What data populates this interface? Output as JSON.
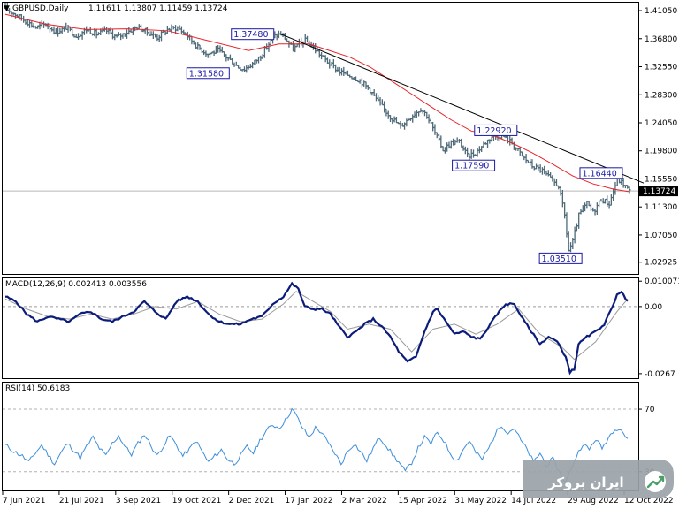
{
  "chart_data": [
    {
      "type": "ohlc",
      "pane": "price",
      "label": "GBPUSD,Daily",
      "ohlc": "1.11611 1.13807 1.11459 1.13724",
      "current_price": 1.13724,
      "current_price_label": "1.13724",
      "ylim": [
        1.0115,
        1.4226
      ],
      "yticks": [
        "1.41050",
        "1.36800",
        "1.32550",
        "1.28300",
        "1.24050",
        "1.19800",
        "1.15550",
        "1.11300",
        "1.07050",
        "1.02925"
      ],
      "ytick_values": [
        1.4105,
        1.368,
        1.3255,
        1.283,
        1.2405,
        1.198,
        1.1555,
        1.113,
        1.0705,
        1.02925
      ],
      "close_path": [
        [
          0,
          1.414
        ],
        [
          5,
          1.405
        ],
        [
          10,
          1.395
        ],
        [
          15,
          1.385
        ],
        [
          20,
          1.39
        ],
        [
          25,
          1.378
        ],
        [
          30,
          1.385
        ],
        [
          35,
          1.372
        ],
        [
          40,
          1.382
        ],
        [
          45,
          1.375
        ],
        [
          50,
          1.38
        ],
        [
          55,
          1.37
        ],
        [
          60,
          1.378
        ],
        [
          65,
          1.386
        ],
        [
          70,
          1.378
        ],
        [
          75,
          1.37
        ],
        [
          80,
          1.382
        ],
        [
          85,
          1.385
        ],
        [
          90,
          1.372
        ],
        [
          95,
          1.355
        ],
        [
          100,
          1.345
        ],
        [
          105,
          1.35
        ],
        [
          110,
          1.338
        ],
        [
          115,
          1.325
        ],
        [
          118,
          1.322
        ],
        [
          122,
          1.33
        ],
        [
          126,
          1.342
        ],
        [
          130,
          1.36
        ],
        [
          133,
          1.372
        ],
        [
          136,
          1.375
        ],
        [
          139,
          1.365
        ],
        [
          142,
          1.352
        ],
        [
          145,
          1.36
        ],
        [
          148,
          1.365
        ],
        [
          151,
          1.358
        ],
        [
          155,
          1.345
        ],
        [
          160,
          1.33
        ],
        [
          165,
          1.318
        ],
        [
          170,
          1.312
        ],
        [
          175,
          1.305
        ],
        [
          180,
          1.29
        ],
        [
          185,
          1.268
        ],
        [
          190,
          1.25
        ],
        [
          195,
          1.235
        ],
        [
          200,
          1.25
        ],
        [
          205,
          1.262
        ],
        [
          208,
          1.252
        ],
        [
          212,
          1.225
        ],
        [
          216,
          1.2
        ],
        [
          220,
          1.21
        ],
        [
          224,
          1.212
        ],
        [
          228,
          1.19
        ],
        [
          232,
          1.195
        ],
        [
          236,
          1.208
        ],
        [
          240,
          1.22
        ],
        [
          245,
          1.222
        ],
        [
          250,
          1.21
        ],
        [
          255,
          1.19
        ],
        [
          260,
          1.175
        ],
        [
          265,
          1.168
        ],
        [
          270,
          1.152
        ],
        [
          273,
          1.145
        ],
        [
          276,
          1.1
        ],
        [
          278,
          1.047
        ],
        [
          280,
          1.06
        ],
        [
          283,
          1.1
        ],
        [
          287,
          1.118
        ],
        [
          290,
          1.105
        ],
        [
          294,
          1.125
        ],
        [
          298,
          1.118
        ],
        [
          302,
          1.155
        ],
        [
          305,
          1.148
        ],
        [
          308,
          1.137
        ]
      ],
      "ma_path": [
        [
          0,
          1.405
        ],
        [
          20,
          1.39
        ],
        [
          40,
          1.382
        ],
        [
          60,
          1.383
        ],
        [
          80,
          1.38
        ],
        [
          100,
          1.365
        ],
        [
          120,
          1.35
        ],
        [
          135,
          1.36
        ],
        [
          150,
          1.36
        ],
        [
          160,
          1.35
        ],
        [
          170,
          1.34
        ],
        [
          180,
          1.325
        ],
        [
          190,
          1.305
        ],
        [
          200,
          1.285
        ],
        [
          210,
          1.265
        ],
        [
          220,
          1.245
        ],
        [
          230,
          1.228
        ],
        [
          240,
          1.222
        ],
        [
          250,
          1.21
        ],
        [
          260,
          1.195
        ],
        [
          270,
          1.178
        ],
        [
          280,
          1.16
        ],
        [
          290,
          1.148
        ],
        [
          300,
          1.14
        ],
        [
          308,
          1.136
        ]
      ],
      "trendline": [
        [
          136,
          1.3748
        ],
        [
          308,
          1.158
        ]
      ],
      "annotations": [
        {
          "text": "1.37480",
          "x": 112,
          "y": 1.3748
        },
        {
          "text": "1.31580",
          "x": 90,
          "y": 1.3158
        },
        {
          "text": "1.22920",
          "x": 232,
          "y": 1.2292
        },
        {
          "text": "1.17590",
          "x": 221,
          "y": 1.1759
        },
        {
          "text": "1.16440",
          "x": 284,
          "y": 1.1644
        },
        {
          "text": "1.03510",
          "x": 264,
          "y": 1.0351
        }
      ]
    },
    {
      "type": "line",
      "pane": "macd",
      "label": "MACD(12,26,9) 0.002413 0.003556",
      "ylim": [
        -0.0285,
        0.0112
      ],
      "yticks": [
        "0.010071",
        "0.00",
        "-0.0267"
      ],
      "ytick_values": [
        0.010071,
        0.0,
        -0.0267
      ],
      "zero_line": 0.0,
      "main": [
        [
          0,
          0.004
        ],
        [
          5,
          0.002
        ],
        [
          10,
          -0.003
        ],
        [
          15,
          -0.006
        ],
        [
          20,
          -0.004
        ],
        [
          25,
          -0.005
        ],
        [
          30,
          -0.006
        ],
        [
          35,
          -0.003
        ],
        [
          40,
          -0.002
        ],
        [
          45,
          -0.005
        ],
        [
          50,
          -0.006
        ],
        [
          55,
          -0.004
        ],
        [
          60,
          -0.002
        ],
        [
          65,
          0.002
        ],
        [
          70,
          -0.002
        ],
        [
          75,
          -0.005
        ],
        [
          80,
          0.002
        ],
        [
          85,
          0.004
        ],
        [
          90,
          0.002
        ],
        [
          95,
          -0.003
        ],
        [
          100,
          -0.006
        ],
        [
          105,
          -0.007
        ],
        [
          110,
          -0.007
        ],
        [
          115,
          -0.005
        ],
        [
          120,
          -0.004
        ],
        [
          125,
          0.001
        ],
        [
          130,
          0.004
        ],
        [
          134,
          0.009
        ],
        [
          137,
          0.007
        ],
        [
          140,
          0.0
        ],
        [
          144,
          -0.001
        ],
        [
          148,
          -0.001
        ],
        [
          152,
          -0.003
        ],
        [
          156,
          -0.008
        ],
        [
          160,
          -0.012
        ],
        [
          164,
          -0.01
        ],
        [
          168,
          -0.007
        ],
        [
          172,
          -0.005
        ],
        [
          176,
          -0.008
        ],
        [
          180,
          -0.012
        ],
        [
          184,
          -0.018
        ],
        [
          188,
          -0.022
        ],
        [
          192,
          -0.02
        ],
        [
          196,
          -0.01
        ],
        [
          200,
          -0.002
        ],
        [
          202,
          -0.001
        ],
        [
          206,
          -0.006
        ],
        [
          210,
          -0.011
        ],
        [
          214,
          -0.01
        ],
        [
          218,
          -0.012
        ],
        [
          222,
          -0.013
        ],
        [
          226,
          -0.008
        ],
        [
          230,
          -0.003
        ],
        [
          234,
          0.001
        ],
        [
          238,
          0.001
        ],
        [
          242,
          -0.005
        ],
        [
          246,
          -0.01
        ],
        [
          250,
          -0.015
        ],
        [
          254,
          -0.012
        ],
        [
          258,
          -0.014
        ],
        [
          262,
          -0.02
        ],
        [
          264,
          -0.026
        ],
        [
          266,
          -0.025
        ],
        [
          268,
          -0.015
        ],
        [
          272,
          -0.012
        ],
        [
          276,
          -0.01
        ],
        [
          280,
          -0.007
        ],
        [
          284,
          0.0
        ],
        [
          286,
          0.005
        ],
        [
          288,
          0.006
        ],
        [
          290,
          0.003
        ],
        [
          291,
          0.002
        ]
      ],
      "signal": [
        [
          0,
          0.003
        ],
        [
          10,
          -0.001
        ],
        [
          20,
          -0.004
        ],
        [
          30,
          -0.005
        ],
        [
          40,
          -0.003
        ],
        [
          50,
          -0.005
        ],
        [
          60,
          -0.003
        ],
        [
          70,
          0.0
        ],
        [
          80,
          -0.001
        ],
        [
          90,
          0.002
        ],
        [
          100,
          -0.003
        ],
        [
          110,
          -0.006
        ],
        [
          120,
          -0.005
        ],
        [
          130,
          0.001
        ],
        [
          136,
          0.006
        ],
        [
          144,
          0.002
        ],
        [
          152,
          -0.002
        ],
        [
          160,
          -0.009
        ],
        [
          170,
          -0.007
        ],
        [
          180,
          -0.009
        ],
        [
          190,
          -0.018
        ],
        [
          200,
          -0.009
        ],
        [
          210,
          -0.007
        ],
        [
          220,
          -0.011
        ],
        [
          230,
          -0.007
        ],
        [
          240,
          -0.001
        ],
        [
          250,
          -0.011
        ],
        [
          260,
          -0.016
        ],
        [
          266,
          -0.021
        ],
        [
          276,
          -0.014
        ],
        [
          286,
          -0.002
        ],
        [
          291,
          0.003
        ]
      ]
    },
    {
      "type": "line",
      "pane": "rsi",
      "label": "RSI(14) 50.6183",
      "ylim": [
        18,
        87
      ],
      "yticks": [
        "70",
        "30"
      ],
      "ytick_values": [
        70,
        30
      ],
      "levels": [
        70,
        30
      ],
      "values": [
        [
          0,
          47
        ],
        [
          4,
          43
        ],
        [
          8,
          40
        ],
        [
          11,
          36
        ],
        [
          14,
          42
        ],
        [
          17,
          47
        ],
        [
          20,
          41
        ],
        [
          23,
          35
        ],
        [
          26,
          42
        ],
        [
          29,
          48
        ],
        [
          32,
          44
        ],
        [
          35,
          39
        ],
        [
          38,
          46
        ],
        [
          41,
          52
        ],
        [
          44,
          45
        ],
        [
          47,
          40
        ],
        [
          50,
          48
        ],
        [
          53,
          53
        ],
        [
          56,
          46
        ],
        [
          59,
          41
        ],
        [
          62,
          48
        ],
        [
          65,
          54
        ],
        [
          68,
          47
        ],
        [
          71,
          40
        ],
        [
          74,
          47
        ],
        [
          77,
          53
        ],
        [
          80,
          47
        ],
        [
          83,
          40
        ],
        [
          86,
          44
        ],
        [
          89,
          50
        ],
        [
          92,
          43
        ],
        [
          95,
          36
        ],
        [
          98,
          40
        ],
        [
          101,
          44
        ],
        [
          104,
          38
        ],
        [
          107,
          35
        ],
        [
          110,
          40
        ],
        [
          113,
          46
        ],
        [
          116,
          42
        ],
        [
          119,
          50
        ],
        [
          122,
          56
        ],
        [
          125,
          60
        ],
        [
          128,
          58
        ],
        [
          131,
          63
        ],
        [
          134,
          70
        ],
        [
          136,
          66
        ],
        [
          139,
          58
        ],
        [
          142,
          52
        ],
        [
          145,
          58
        ],
        [
          148,
          55
        ],
        [
          151,
          48
        ],
        [
          154,
          42
        ],
        [
          157,
          35
        ],
        [
          160,
          43
        ],
        [
          163,
          48
        ],
        [
          166,
          43
        ],
        [
          169,
          37
        ],
        [
          172,
          45
        ],
        [
          175,
          52
        ],
        [
          178,
          47
        ],
        [
          181,
          41
        ],
        [
          184,
          36
        ],
        [
          187,
          30
        ],
        [
          190,
          36
        ],
        [
          193,
          45
        ],
        [
          196,
          52
        ],
        [
          199,
          48
        ],
        [
          202,
          55
        ],
        [
          205,
          50
        ],
        [
          208,
          42
        ],
        [
          211,
          37
        ],
        [
          214,
          44
        ],
        [
          217,
          50
        ],
        [
          220,
          42
        ],
        [
          223,
          38
        ],
        [
          226,
          45
        ],
        [
          229,
          54
        ],
        [
          232,
          60
        ],
        [
          235,
          55
        ],
        [
          238,
          58
        ],
        [
          241,
          50
        ],
        [
          244,
          44
        ],
        [
          247,
          36
        ],
        [
          250,
          42
        ],
        [
          253,
          34
        ],
        [
          256,
          38
        ],
        [
          259,
          30
        ],
        [
          262,
          23
        ],
        [
          264,
          30
        ],
        [
          267,
          40
        ],
        [
          270,
          48
        ],
        [
          273,
          44
        ],
        [
          276,
          51
        ],
        [
          279,
          45
        ],
        [
          282,
          52
        ],
        [
          285,
          58
        ],
        [
          288,
          57
        ],
        [
          291,
          50
        ]
      ]
    }
  ],
  "x_axis": {
    "labels": [
      "7 Jun 2021",
      "21 Jul 2021",
      "3 Sep 2021",
      "19 Oct 2021",
      "2 Dec 2021",
      "17 Jan 2022",
      "2 Mar 2022",
      "15 Apr 2022",
      "31 May 2022",
      "14 Jul 2022",
      "29 Aug 2022",
      "12 Oct 2022"
    ]
  },
  "watermark": {
    "text": "ایران بروکر"
  },
  "colors": {
    "bars": "#4e6a78",
    "ma": "#e8222a",
    "trendline": "#000000",
    "macd_main": "#0b1c7a",
    "macd_signal": "#9a9a9a",
    "rsi": "#3d8fdc",
    "annotation_border": "#1a1aa6",
    "grid": "#c8c8c8"
  }
}
